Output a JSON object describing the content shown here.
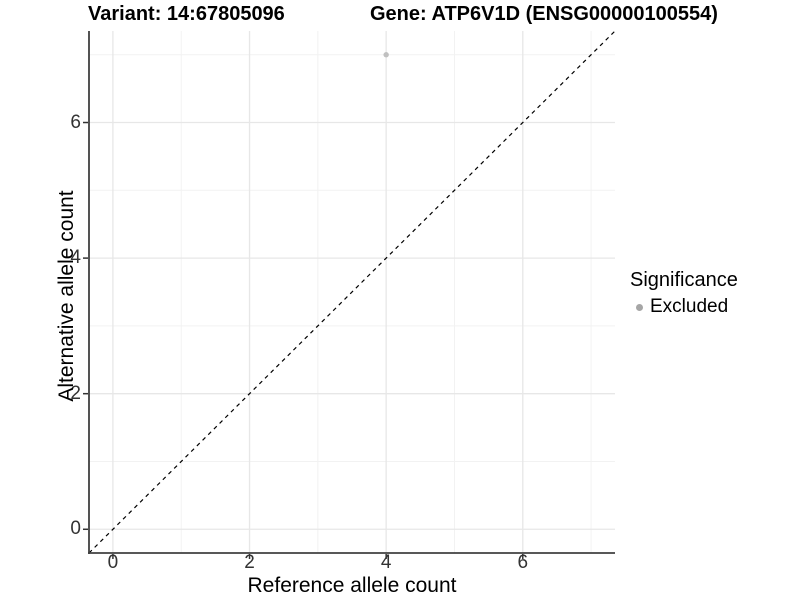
{
  "chart_data": {
    "type": "scatter",
    "title_left": "Variant: 14:67805096",
    "title_right": "Gene: ATP6V1D (ENSG00000100554)",
    "xlabel": "Reference allele count",
    "ylabel": "Alternative allele count",
    "xlim": [
      -0.35,
      7.35
    ],
    "ylim": [
      -0.35,
      7.35
    ],
    "x_ticks": [
      0,
      2,
      4,
      6
    ],
    "y_ticks": [
      0,
      2,
      4,
      6
    ],
    "x_minor_gridlines": [
      1,
      3,
      5,
      7
    ],
    "y_minor_gridlines": [
      1,
      3,
      5,
      7
    ],
    "grid": true,
    "points": [
      {
        "x": 4,
        "y": 7,
        "series": "Excluded"
      }
    ],
    "reference_line": {
      "type": "identity",
      "style": "dashed",
      "label": "y = x"
    },
    "legend": {
      "title": "Significance",
      "position": "right",
      "entries": [
        {
          "label": "Excluded",
          "color": "#a6a6a6"
        }
      ]
    },
    "colors": {
      "point": "#c0c0c0",
      "grid_major": "#e7e7e7",
      "grid_minor": "#f2f2f2",
      "axis_line": "#404040",
      "tick_mark": "#333333",
      "tick_text": "#333333",
      "text": "#000000",
      "reference_line": "#000000",
      "background": "#ffffff"
    }
  }
}
